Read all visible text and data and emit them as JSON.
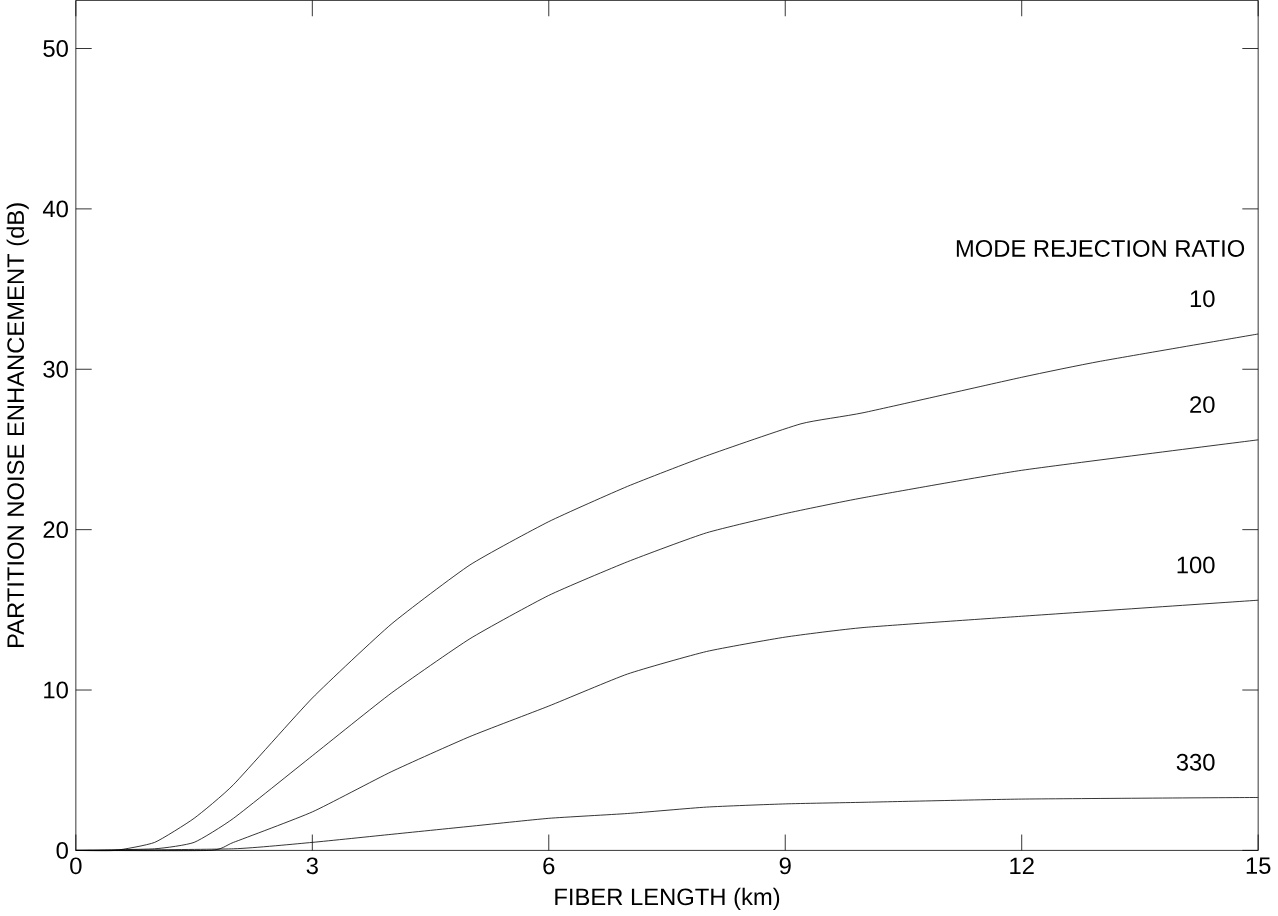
{
  "chart_data": {
    "type": "line",
    "xlabel": "FIBER LENGTH (km)",
    "ylabel": "PARTITION NOISE ENHANCEMENT (dB)",
    "legend_title": "MODE REJECTION RATIO",
    "xlim": [
      0,
      15
    ],
    "ylim": [
      0,
      53
    ],
    "xticks": [
      0,
      3,
      6,
      9,
      12,
      15
    ],
    "yticks": [
      0,
      10,
      20,
      30,
      40,
      50
    ],
    "grid": false,
    "marker": "none",
    "line_style": "solid",
    "series": [
      {
        "name": "10",
        "color": "#000000",
        "x": [
          0,
          0.5,
          1,
          1.5,
          2,
          3,
          4,
          5,
          6,
          7,
          8,
          9.2,
          10,
          12,
          13,
          15
        ],
        "values": [
          0,
          0,
          0.5,
          2,
          4.1,
          9.5,
          14.1,
          17.8,
          20.5,
          22.7,
          24.6,
          26.6,
          27.3,
          29.5,
          30.5,
          32.2
        ]
      },
      {
        "name": "20",
        "color": "#000000",
        "x": [
          0,
          1,
          1.5,
          2,
          3,
          4,
          5,
          6,
          7,
          8,
          9,
          10,
          12,
          15
        ],
        "values": [
          0,
          0.1,
          0.5,
          2,
          5.9,
          9.8,
          13.2,
          15.9,
          18,
          19.8,
          21,
          22,
          23.7,
          25.6
        ]
      },
      {
        "name": "100",
        "color": "#000000",
        "x": [
          0,
          1.7,
          2,
          3,
          4,
          5,
          6,
          7,
          8,
          9,
          10,
          12,
          15
        ],
        "values": [
          0,
          0,
          0.5,
          2.4,
          4.9,
          7.1,
          9,
          11,
          12.4,
          13.3,
          13.9,
          14.6,
          15.6
        ]
      },
      {
        "name": "330",
        "color": "#000000",
        "x": [
          0,
          2,
          3,
          4,
          5,
          6,
          7,
          8,
          9,
          10,
          12,
          15
        ],
        "values": [
          0,
          0.1,
          0.5,
          1,
          1.5,
          2,
          2.3,
          2.7,
          2.9,
          3,
          3.2,
          3.3
        ]
      }
    ]
  }
}
